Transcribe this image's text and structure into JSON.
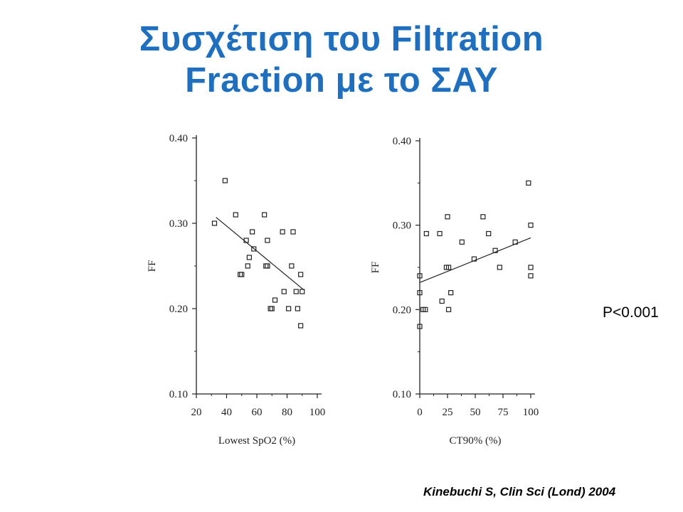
{
  "slide": {
    "title_line1": "Συσχέτιση του Filtration",
    "title_line2": "Fraction με το ΣΑΥ",
    "p_value": "P<0.001",
    "citation": "Kinebuchi S, Clin Sci (Lond) 2004",
    "title_color": "#1e6fc0"
  },
  "chart_data": [
    {
      "type": "scatter",
      "xlabel": "Lowest SpO2 (%)",
      "ylabel": "FF",
      "xlim": [
        20,
        100
      ],
      "ylim": [
        0.1,
        0.4
      ],
      "x_ticks": [
        20,
        40,
        60,
        80,
        100
      ],
      "y_ticks": [
        0.1,
        0.2,
        0.3,
        0.4
      ],
      "y_tick_labels": [
        "0.10",
        "0.20",
        "0.30",
        "0.40"
      ],
      "points": [
        [
          32,
          0.3
        ],
        [
          39,
          0.35
        ],
        [
          46,
          0.31
        ],
        [
          49,
          0.24
        ],
        [
          50,
          0.24
        ],
        [
          53,
          0.28
        ],
        [
          54,
          0.25
        ],
        [
          55,
          0.26
        ],
        [
          57,
          0.29
        ],
        [
          58,
          0.27
        ],
        [
          65,
          0.31
        ],
        [
          66,
          0.25
        ],
        [
          67,
          0.28
        ],
        [
          67,
          0.25
        ],
        [
          69,
          0.2
        ],
        [
          70,
          0.2
        ],
        [
          72,
          0.21
        ],
        [
          77,
          0.29
        ],
        [
          78,
          0.22
        ],
        [
          81,
          0.2
        ],
        [
          83,
          0.25
        ],
        [
          84,
          0.29
        ],
        [
          86,
          0.22
        ],
        [
          87,
          0.2
        ],
        [
          89,
          0.18
        ],
        [
          89,
          0.24
        ],
        [
          90,
          0.22
        ]
      ],
      "trendline": [
        [
          33,
          0.307
        ],
        [
          91,
          0.222
        ]
      ]
    },
    {
      "type": "scatter",
      "xlabel": "CT90% (%)",
      "ylabel": "FF",
      "xlim": [
        0,
        100
      ],
      "ylim": [
        0.1,
        0.4
      ],
      "x_ticks": [
        0,
        25,
        50,
        75,
        100
      ],
      "y_ticks": [
        0.1,
        0.2,
        0.3,
        0.4
      ],
      "y_tick_labels": [
        "0.10",
        "0.20",
        "0.30",
        "0.40"
      ],
      "points": [
        [
          0,
          0.18
        ],
        [
          0,
          0.24
        ],
        [
          0,
          0.22
        ],
        [
          3,
          0.2
        ],
        [
          5,
          0.2
        ],
        [
          6,
          0.29
        ],
        [
          18,
          0.29
        ],
        [
          20,
          0.21
        ],
        [
          24,
          0.25
        ],
        [
          26,
          0.25
        ],
        [
          25,
          0.31
        ],
        [
          26,
          0.2
        ],
        [
          28,
          0.22
        ],
        [
          38,
          0.28
        ],
        [
          49,
          0.26
        ],
        [
          57,
          0.31
        ],
        [
          62,
          0.29
        ],
        [
          68,
          0.27
        ],
        [
          72,
          0.25
        ],
        [
          86,
          0.28
        ],
        [
          98,
          0.35
        ],
        [
          100,
          0.25
        ],
        [
          100,
          0.24
        ],
        [
          100,
          0.3
        ]
      ],
      "trendline": [
        [
          0,
          0.232
        ],
        [
          100,
          0.285
        ]
      ]
    }
  ]
}
